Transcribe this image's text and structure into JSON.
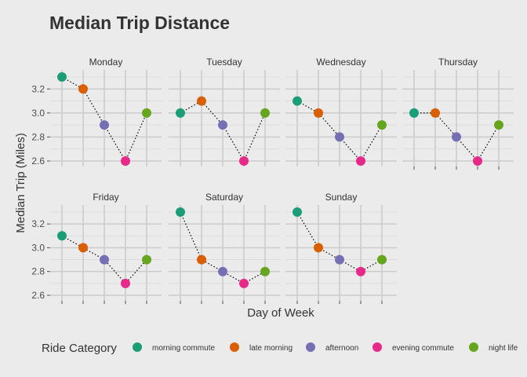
{
  "chart_data": {
    "type": "scatter",
    "title": "Median Trip Distance",
    "xlabel": "Day of Week",
    "ylabel": "Median Trip (Miles)",
    "ylim": [
      2.6,
      3.3
    ],
    "yticks": [
      "2.6",
      "2.8",
      "3.0",
      "3.2"
    ],
    "grid": true,
    "legend": {
      "title": "Ride Category",
      "position": "bottom",
      "entries": [
        {
          "label": "morning commute",
          "color": "#1b9e77"
        },
        {
          "label": "late morning",
          "color": "#d95f02"
        },
        {
          "label": "afternoon",
          "color": "#7570b3"
        },
        {
          "label": "evening commute",
          "color": "#e7298a"
        },
        {
          "label": "night life",
          "color": "#66a61e"
        }
      ]
    },
    "categories": [
      "morning commute",
      "late morning",
      "afternoon",
      "evening commute",
      "night life"
    ],
    "panels": [
      {
        "label": "Monday",
        "values": [
          3.3,
          3.2,
          2.9,
          2.6,
          3.0
        ]
      },
      {
        "label": "Tuesday",
        "values": [
          3.0,
          3.1,
          2.9,
          2.6,
          3.0
        ]
      },
      {
        "label": "Wednesday",
        "values": [
          3.1,
          3.0,
          2.8,
          2.6,
          2.9
        ]
      },
      {
        "label": "Thursday",
        "values": [
          3.0,
          3.0,
          2.8,
          2.6,
          2.9
        ]
      },
      {
        "label": "Friday",
        "values": [
          3.1,
          3.0,
          2.9,
          2.7,
          2.9
        ]
      },
      {
        "label": "Saturday",
        "values": [
          3.3,
          2.9,
          2.8,
          2.7,
          2.8
        ]
      },
      {
        "label": "Sunday",
        "values": [
          3.3,
          3.0,
          2.9,
          2.8,
          2.9
        ]
      }
    ]
  }
}
